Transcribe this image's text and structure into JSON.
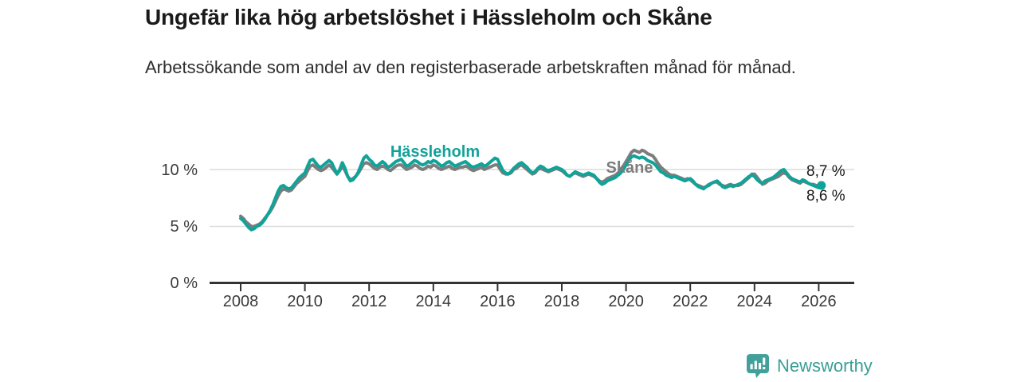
{
  "header": {
    "title": "Ungefär lika hög arbetslöshet i Hässleholm och Skåne",
    "subtitle": "Arbetssökande som andel av den registerbaserade arbetskraften månad för månad."
  },
  "footer": {
    "brand": "Newsworthy"
  },
  "colors": {
    "hassleholm": "#10a399",
    "skane": "#7d7d7d",
    "axis": "#333333",
    "gridline": "#dcdcdc",
    "brand_teal": "#3a9e96"
  },
  "chart_data": {
    "type": "line",
    "title": "Ungefär lika hög arbetslöshet i Hässleholm och Skåne",
    "subtitle": "Arbetssökande som andel av den registerbaserade arbetskraften månad för månad.",
    "x_start": "2008-01",
    "x_end": "2026-02",
    "frequency": "monthly",
    "ylim": [
      0,
      12
    ],
    "grid": "horizontal",
    "legend_position": "inline-labels",
    "y_tick_labels": [
      "0 %",
      "5 %",
      "10 %"
    ],
    "y_tick_values": [
      0,
      5,
      10
    ],
    "x_tick_labels": [
      "2008",
      "2010",
      "2012",
      "2014",
      "2016",
      "2018",
      "2020",
      "2022",
      "2024",
      "2026"
    ],
    "series": [
      {
        "name": "Skåne",
        "color": "#7d7d7d",
        "end_label": "8,7 %",
        "end_value": 8.7,
        "values": [
          5.9,
          5.7,
          5.4,
          5.2,
          5.0,
          5.0,
          5.1,
          5.2,
          5.4,
          5.7,
          6.0,
          6.3,
          6.7,
          7.2,
          7.7,
          8.1,
          8.3,
          8.2,
          8.1,
          8.2,
          8.5,
          8.8,
          9.0,
          9.2,
          9.4,
          9.9,
          10.3,
          10.4,
          10.2,
          10.0,
          9.9,
          10.0,
          10.2,
          10.4,
          10.2,
          9.9,
          9.6,
          9.9,
          10.3,
          9.9,
          9.4,
          9.1,
          9.2,
          9.4,
          9.7,
          10.1,
          10.5,
          10.6,
          10.5,
          10.3,
          10.1,
          10.0,
          10.2,
          10.3,
          10.2,
          10.0,
          9.9,
          10.1,
          10.3,
          10.4,
          10.4,
          10.2,
          10.0,
          10.1,
          10.2,
          10.4,
          10.3,
          10.1,
          10.0,
          10.1,
          10.3,
          10.2,
          10.4,
          10.3,
          10.1,
          10.0,
          10.1,
          10.2,
          10.3,
          10.1,
          10.0,
          10.1,
          10.2,
          10.2,
          10.3,
          10.2,
          10.0,
          9.9,
          10.0,
          10.1,
          10.2,
          10.0,
          10.1,
          10.2,
          10.3,
          10.4,
          10.4,
          10.0,
          9.7,
          9.6,
          9.6,
          9.7,
          10.0,
          10.1,
          10.3,
          10.4,
          10.2,
          10.0,
          9.8,
          9.6,
          9.7,
          10.0,
          10.1,
          10.0,
          9.9,
          9.8,
          9.9,
          10.0,
          10.1,
          10.0,
          9.9,
          9.7,
          9.5,
          9.4,
          9.6,
          9.7,
          9.6,
          9.5,
          9.4,
          9.5,
          9.6,
          9.5,
          9.4,
          9.2,
          9.0,
          8.9,
          9.0,
          9.2,
          9.3,
          9.4,
          9.5,
          9.7,
          9.9,
          10.3,
          10.7,
          11.1,
          11.5,
          11.7,
          11.6,
          11.5,
          11.7,
          11.6,
          11.4,
          11.3,
          11.2,
          10.9,
          10.5,
          10.2,
          10.0,
          9.8,
          9.6,
          9.5,
          9.5,
          9.4,
          9.3,
          9.2,
          9.1,
          9.2,
          9.1,
          8.9,
          8.7,
          8.6,
          8.5,
          8.4,
          8.5,
          8.7,
          8.8,
          8.9,
          8.9,
          8.7,
          8.6,
          8.5,
          8.6,
          8.7,
          8.6,
          8.6,
          8.6,
          8.7,
          8.9,
          9.1,
          9.3,
          9.6,
          9.6,
          9.3,
          9.0,
          8.7,
          8.8,
          9.0,
          9.1,
          9.2,
          9.3,
          9.4,
          9.6,
          9.7,
          9.6,
          9.3,
          9.1,
          9.0,
          8.9,
          8.8,
          9.0,
          8.9,
          8.8,
          8.7,
          8.7,
          8.6,
          8.6,
          8.7
        ]
      },
      {
        "name": "Hässleholm",
        "color": "#10a399",
        "end_label": "8,6 %",
        "end_value": 8.6,
        "values": [
          5.7,
          5.5,
          5.2,
          4.9,
          4.7,
          4.8,
          5.0,
          5.1,
          5.3,
          5.6,
          6.0,
          6.4,
          6.9,
          7.5,
          8.1,
          8.5,
          8.6,
          8.4,
          8.3,
          8.4,
          8.7,
          9.0,
          9.3,
          9.5,
          9.7,
          10.3,
          10.8,
          10.9,
          10.6,
          10.3,
          10.2,
          10.4,
          10.6,
          10.8,
          10.6,
          10.1,
          9.6,
          10.0,
          10.6,
          10.1,
          9.4,
          9.0,
          9.1,
          9.4,
          9.8,
          10.4,
          11.0,
          11.2,
          10.9,
          10.7,
          10.4,
          10.3,
          10.5,
          10.7,
          10.5,
          10.2,
          10.3,
          10.5,
          10.7,
          10.8,
          10.9,
          10.6,
          10.3,
          10.4,
          10.6,
          10.8,
          10.7,
          10.5,
          10.4,
          10.5,
          10.7,
          10.6,
          10.8,
          10.7,
          10.5,
          10.3,
          10.4,
          10.6,
          10.7,
          10.5,
          10.3,
          10.4,
          10.5,
          10.6,
          10.7,
          10.5,
          10.3,
          10.2,
          10.3,
          10.4,
          10.5,
          10.3,
          10.4,
          10.6,
          10.8,
          11.0,
          10.9,
          10.4,
          9.9,
          9.7,
          9.6,
          9.8,
          10.1,
          10.3,
          10.5,
          10.6,
          10.4,
          10.2,
          9.9,
          9.7,
          9.8,
          10.1,
          10.3,
          10.2,
          10.0,
          9.9,
          10.0,
          10.1,
          10.2,
          10.1,
          10.0,
          9.8,
          9.5,
          9.4,
          9.6,
          9.8,
          9.7,
          9.6,
          9.5,
          9.6,
          9.7,
          9.6,
          9.5,
          9.2,
          8.9,
          8.7,
          8.8,
          9.0,
          9.1,
          9.2,
          9.3,
          9.5,
          9.7,
          10.0,
          10.4,
          10.8,
          11.1,
          11.2,
          11.1,
          11.0,
          11.1,
          11.0,
          10.8,
          10.7,
          10.6,
          10.4,
          10.1,
          9.8,
          9.7,
          9.5,
          9.4,
          9.3,
          9.4,
          9.3,
          9.2,
          9.1,
          9.0,
          9.1,
          9.2,
          9.0,
          8.7,
          8.5,
          8.4,
          8.3,
          8.5,
          8.6,
          8.8,
          8.9,
          9.0,
          8.8,
          8.5,
          8.4,
          8.5,
          8.6,
          8.5,
          8.6,
          8.7,
          8.8,
          9.0,
          9.2,
          9.4,
          9.5,
          9.4,
          9.1,
          8.9,
          8.8,
          9.0,
          9.1,
          9.2,
          9.3,
          9.5,
          9.7,
          9.9,
          10.0,
          9.7,
          9.4,
          9.2,
          9.1,
          9.0,
          8.9,
          9.1,
          9.0,
          8.8,
          8.7,
          8.6,
          8.5,
          8.4,
          8.6
        ]
      }
    ]
  }
}
